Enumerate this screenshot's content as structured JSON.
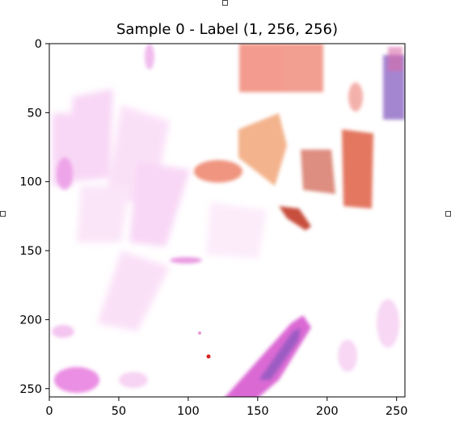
{
  "chart_data": {
    "type": "heatmap",
    "title": "Sample 0 - Label (1, 256, 256)",
    "xlabel": "",
    "ylabel": "",
    "xlim": [
      0,
      256
    ],
    "ylim": [
      256,
      0
    ],
    "x_ticks": [
      0,
      50,
      100,
      150,
      200,
      250
    ],
    "y_ticks": [
      0,
      50,
      100,
      150,
      200,
      250
    ],
    "grid": false,
    "colors": {
      "background": "#ffffff",
      "magenta": "#e060d8",
      "light_magenta": "#f3b6ee",
      "salmon": "#f08a6e",
      "orange_red": "#e0653e",
      "purple": "#9470c8",
      "dark_red": "#c23a2a"
    }
  }
}
